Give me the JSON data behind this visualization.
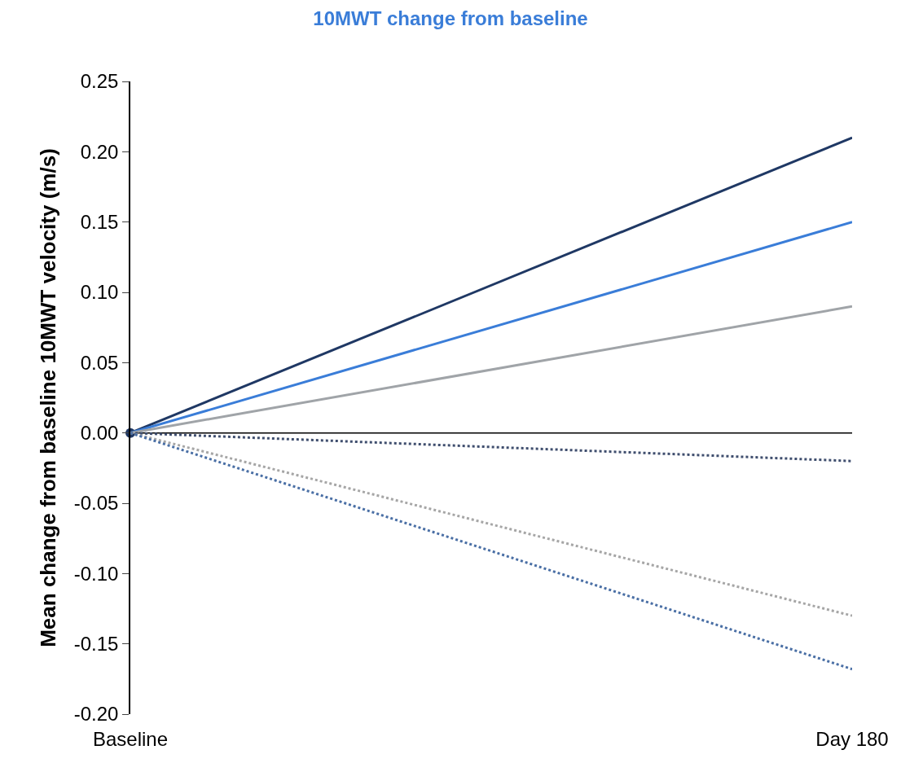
{
  "chart_data": {
    "type": "line",
    "title": "10MWT change from baseline",
    "ylabel": "Mean change from baseline 10MWT velocity (m/s)",
    "categories": [
      "Baseline",
      "Day 180"
    ],
    "ref_lines": [
      {
        "axis": "y",
        "value": 0,
        "color": "#000000"
      }
    ],
    "series": [
      {
        "type": "scatter",
        "color": "#1f3864",
        "values": [
          0,
          null
        ],
        "marker": "circle"
      },
      {
        "color": "#1f3864",
        "values": [
          0,
          0.21
        ],
        "line_style": "solid"
      },
      {
        "color": "#3a7dd8",
        "values": [
          0,
          0.15
        ],
        "line_style": "solid"
      },
      {
        "color": "#a0a4a8",
        "values": [
          0,
          0.09
        ],
        "line_style": "solid"
      },
      {
        "color": "#3f4e6e",
        "values": [
          0,
          -0.02
        ],
        "line_style": "dotted"
      },
      {
        "color": "#a6a6a6",
        "values": [
          0,
          -0.13
        ],
        "line_style": "dotted"
      },
      {
        "color": "#4a6fa5",
        "values": [
          0,
          -0.168
        ],
        "line_style": "dotted"
      }
    ],
    "ylim": [
      -0.2,
      0.25
    ],
    "yticks": [
      {
        "value": -0.2,
        "label": "-0.20"
      },
      {
        "value": -0.15,
        "label": "-0.15"
      },
      {
        "value": -0.1,
        "label": "-0.10"
      },
      {
        "value": -0.05,
        "label": "-0.05"
      },
      {
        "value": 0,
        "label": "0.00"
      },
      {
        "value": 0.05,
        "label": "0.05"
      },
      {
        "value": 0.1,
        "label": "0.10"
      },
      {
        "value": 0.15,
        "label": "0.15"
      },
      {
        "value": 0.2,
        "label": "0.20"
      },
      {
        "value": 0.25,
        "label": "0.25"
      }
    ],
    "grid": false,
    "legend": false
  }
}
